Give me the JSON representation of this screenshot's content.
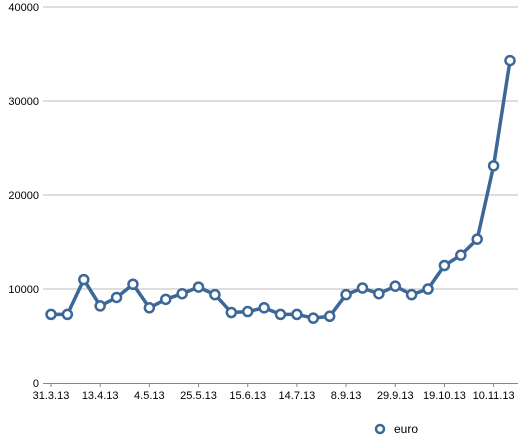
{
  "chart_data": {
    "type": "line",
    "title": "",
    "xlabel": "",
    "ylabel": "",
    "ylim": [
      0,
      40000
    ],
    "y_ticks": [
      "0",
      "10000",
      "20000",
      "30000",
      "40000"
    ],
    "x_tick_labels": [
      "31.3.13",
      "13.4.13",
      "4.5.13",
      "25.5.13",
      "15.6.13",
      "14.7.13",
      "8.9.13",
      "29.9.13",
      "19.10.13",
      "10.11.13"
    ],
    "grid": true,
    "legend_position": "bottom-right",
    "series": [
      {
        "name": "euro",
        "color": "#3c6796",
        "values": [
          7300,
          7300,
          11000,
          8200,
          9100,
          10500,
          8000,
          8900,
          9500,
          10200,
          9400,
          7500,
          7600,
          8000,
          7300,
          7300,
          6900,
          7100,
          9400,
          10100,
          9500,
          10300,
          9400,
          10000,
          12500,
          13600,
          15300,
          23100,
          34300
        ]
      }
    ]
  }
}
